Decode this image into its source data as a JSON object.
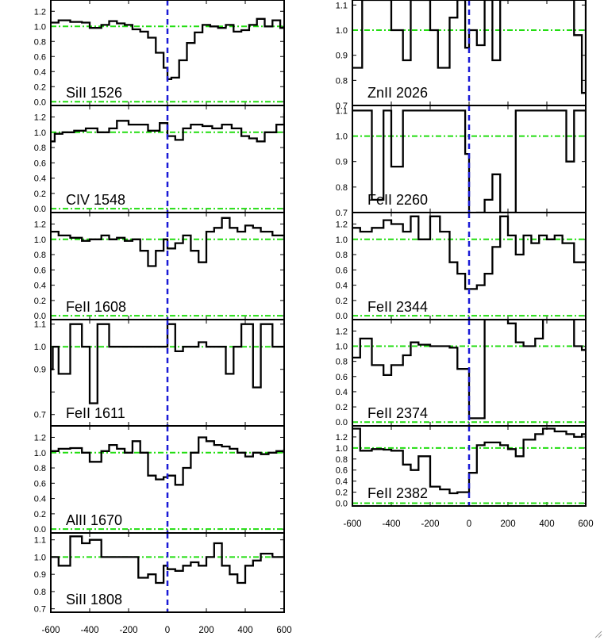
{
  "style": {
    "spectrum_color": "#000000",
    "continuum_color": "#22dd11",
    "center_line_color": "#1a1ad6"
  },
  "chart_data": [
    {
      "type": "line",
      "column": 0,
      "row": 0,
      "label": "SiII 1526",
      "ylim": [
        -0.05,
        1.35
      ],
      "yticks": [
        0.0,
        0.2,
        0.4,
        0.6,
        0.8,
        1.0,
        1.2
      ],
      "ytick_labels": [
        "0.0",
        "0.2",
        "0.4",
        "0.6",
        "0.8",
        "1.0",
        "1.2"
      ],
      "reference_levels": [
        0.0,
        1.0
      ],
      "x": [
        -600,
        -560,
        -500,
        -440,
        -400,
        -340,
        -300,
        -260,
        -220,
        -180,
        -140,
        -100,
        -60,
        -20,
        0,
        20,
        60,
        100,
        140,
        180,
        220,
        260,
        300,
        340,
        380,
        420,
        460,
        500,
        540,
        580,
        600
      ],
      "y": [
        1.05,
        1.08,
        1.06,
        1.05,
        0.98,
        1.02,
        1.07,
        1.04,
        1.02,
        0.96,
        0.93,
        0.85,
        0.65,
        0.45,
        0.3,
        0.32,
        0.55,
        0.78,
        0.92,
        1.02,
        1.0,
        0.98,
        1.02,
        0.93,
        0.95,
        1.02,
        1.1,
        1.0,
        1.08,
        0.98,
        1.0
      ]
    },
    {
      "type": "line",
      "column": 0,
      "row": 1,
      "label": "CIV 1548",
      "ylim": [
        -0.05,
        1.35
      ],
      "yticks": [
        0.0,
        0.2,
        0.4,
        0.6,
        0.8,
        1.0,
        1.2
      ],
      "ytick_labels": [
        "0.0",
        "0.2",
        "0.4",
        "0.6",
        "0.8",
        "1.0",
        "1.2"
      ],
      "reference_levels": [
        0.0,
        1.0
      ],
      "x": [
        -600,
        -580,
        -540,
        -480,
        -420,
        -360,
        -300,
        -260,
        -200,
        -150,
        -100,
        -40,
        0,
        40,
        80,
        120,
        180,
        230,
        280,
        330,
        380,
        420,
        460,
        500,
        560,
        600
      ],
      "y": [
        0.88,
        0.98,
        1.0,
        1.02,
        1.05,
        1.0,
        1.05,
        1.15,
        1.1,
        1.1,
        1.02,
        1.12,
        0.95,
        0.9,
        1.05,
        1.1,
        1.08,
        1.05,
        1.1,
        1.05,
        0.95,
        0.92,
        0.88,
        1.0,
        1.1,
        1.25
      ]
    },
    {
      "type": "line",
      "column": 0,
      "row": 2,
      "label": "FeII 1608",
      "ylim": [
        -0.05,
        1.35
      ],
      "yticks": [
        0.0,
        0.2,
        0.4,
        0.6,
        0.8,
        1.0,
        1.2
      ],
      "ytick_labels": [
        "0.0",
        "0.2",
        "0.4",
        "0.6",
        "0.8",
        "1.0",
        "1.2"
      ],
      "reference_levels": [
        0.0,
        1.0
      ],
      "x": [
        -600,
        -560,
        -500,
        -440,
        -400,
        -340,
        -300,
        -260,
        -220,
        -180,
        -140,
        -100,
        -60,
        -20,
        0,
        40,
        80,
        120,
        160,
        200,
        240,
        280,
        320,
        360,
        400,
        440,
        480,
        540,
        600
      ],
      "y": [
        1.1,
        1.05,
        1.02,
        0.98,
        1.0,
        1.05,
        1.0,
        1.02,
        0.98,
        1.0,
        0.85,
        0.65,
        0.85,
        1.0,
        0.88,
        0.95,
        1.05,
        0.85,
        0.7,
        1.1,
        1.15,
        1.28,
        1.15,
        1.1,
        1.18,
        1.15,
        1.1,
        1.05,
        1.0
      ]
    },
    {
      "type": "line",
      "column": 0,
      "row": 3,
      "label": "FeII 1611",
      "ylim": [
        0.65,
        1.12
      ],
      "yticks": [
        0.7,
        0.8,
        0.9,
        1.0,
        1.1
      ],
      "ytick_labels": [
        "0.7",
        "",
        "0.9",
        "1.0",
        "1.1"
      ],
      "reference_levels": [
        1.0
      ],
      "x": [
        -600,
        -590,
        -560,
        -500,
        -440,
        -400,
        -360,
        -300,
        -260,
        -200,
        -150,
        -100,
        -60,
        -20,
        0,
        40,
        80,
        120,
        160,
        200,
        240,
        300,
        340,
        380,
        440,
        480,
        540,
        600
      ],
      "y": [
        0.9,
        1.0,
        0.88,
        1.1,
        1.0,
        0.75,
        1.1,
        1.0,
        1.0,
        1.0,
        1.0,
        1.0,
        1.0,
        1.0,
        1.1,
        0.98,
        1.0,
        1.0,
        1.02,
        1.0,
        1.0,
        0.88,
        1.0,
        1.1,
        0.82,
        1.1,
        1.0,
        1.0
      ]
    },
    {
      "type": "line",
      "column": 0,
      "row": 4,
      "label": "AlII 1670",
      "ylim": [
        -0.05,
        1.35
      ],
      "yticks": [
        0.0,
        0.2,
        0.4,
        0.6,
        0.8,
        1.0,
        1.2
      ],
      "ytick_labels": [
        "0.0",
        "0.2",
        "0.4",
        "0.6",
        "0.8",
        "1.0",
        "1.2"
      ],
      "reference_levels": [
        0.0,
        1.0
      ],
      "x": [
        -600,
        -560,
        -500,
        -440,
        -400,
        -340,
        -300,
        -260,
        -220,
        -180,
        -140,
        -100,
        -60,
        -20,
        0,
        40,
        80,
        120,
        160,
        200,
        240,
        280,
        320,
        360,
        400,
        440,
        480,
        520,
        560,
        600
      ],
      "y": [
        1.02,
        1.05,
        1.06,
        1.0,
        0.88,
        1.02,
        1.1,
        1.05,
        1.0,
        1.15,
        1.0,
        0.7,
        0.65,
        0.68,
        0.7,
        0.58,
        0.8,
        1.0,
        1.2,
        1.15,
        1.1,
        1.08,
        1.05,
        1.0,
        0.95,
        1.0,
        0.98,
        1.0,
        1.02,
        1.05
      ]
    },
    {
      "type": "line",
      "column": 0,
      "row": 5,
      "label": "SiII 1808",
      "ylim": [
        0.68,
        1.14
      ],
      "yticks": [
        0.7,
        0.8,
        0.9,
        1.0,
        1.1
      ],
      "ytick_labels": [
        "0.7",
        "0.8",
        "0.9",
        "1.0",
        "1.1"
      ],
      "reference_levels": [
        1.0
      ],
      "x": [
        -600,
        -560,
        -500,
        -440,
        -400,
        -340,
        -300,
        -260,
        -200,
        -150,
        -100,
        -60,
        -20,
        0,
        40,
        80,
        120,
        160,
        200,
        240,
        280,
        320,
        360,
        400,
        440,
        480,
        540,
        600
      ],
      "y": [
        1.0,
        0.95,
        1.12,
        1.08,
        1.1,
        1.0,
        1.0,
        1.0,
        1.0,
        0.88,
        0.9,
        0.85,
        0.95,
        0.93,
        0.92,
        0.95,
        0.97,
        0.95,
        1.0,
        1.08,
        0.95,
        0.9,
        0.85,
        0.95,
        0.98,
        1.02,
        1.0,
        1.12
      ]
    },
    {
      "type": "line",
      "column": 1,
      "row": 0,
      "label": "ZnII 2026",
      "ylim": [
        0.7,
        1.12
      ],
      "yticks": [
        0.7,
        0.8,
        0.9,
        1.0,
        1.1
      ],
      "ytick_labels": [
        "0.7",
        "0.8",
        "0.9",
        "1.0",
        "1.1"
      ],
      "reference_levels": [
        1.0
      ],
      "x": [
        -600,
        -550,
        -500,
        -440,
        -400,
        -340,
        -300,
        -260,
        -200,
        -160,
        -100,
        -60,
        -20,
        0,
        40,
        80,
        120,
        160,
        200,
        240,
        280,
        340,
        380,
        440,
        500,
        540,
        580,
        600
      ],
      "y": [
        0.85,
        1.12,
        1.12,
        1.12,
        1.0,
        0.88,
        1.12,
        1.12,
        1.0,
        0.85,
        1.05,
        1.12,
        0.93,
        1.0,
        0.94,
        1.12,
        0.88,
        1.12,
        1.12,
        1.12,
        1.12,
        1.12,
        1.12,
        1.12,
        1.12,
        0.98,
        0.75,
        1.12
      ]
    },
    {
      "type": "line",
      "column": 1,
      "row": 1,
      "label": "FeII 2260",
      "ylim": [
        0.7,
        1.12
      ],
      "yticks": [
        0.7,
        0.8,
        0.9,
        1.0,
        1.1
      ],
      "ytick_labels": [
        "0.7",
        "0.8",
        "0.9",
        "1.0",
        "1.1"
      ],
      "reference_levels": [
        1.0
      ],
      "x": [
        -600,
        -560,
        -500,
        -440,
        -400,
        -340,
        -300,
        -260,
        -200,
        -160,
        -100,
        -60,
        -20,
        0,
        40,
        80,
        120,
        160,
        200,
        240,
        280,
        340,
        380,
        440,
        500,
        540,
        580,
        600
      ],
      "y": [
        1.1,
        1.1,
        0.75,
        1.1,
        0.88,
        1.1,
        1.1,
        1.1,
        1.1,
        1.1,
        1.1,
        1.1,
        0.93,
        0.65,
        0.7,
        0.75,
        0.85,
        0.7,
        0.7,
        1.1,
        1.1,
        1.1,
        1.1,
        1.1,
        0.9,
        1.1,
        1.1,
        0.9
      ]
    },
    {
      "type": "line",
      "column": 1,
      "row": 2,
      "label": "FeII 2344",
      "ylim": [
        -0.05,
        1.35
      ],
      "yticks": [
        0.0,
        0.2,
        0.4,
        0.6,
        0.8,
        1.0,
        1.2
      ],
      "ytick_labels": [
        "0.0",
        "0.2",
        "0.4",
        "0.6",
        "0.8",
        "1.0",
        "1.2"
      ],
      "reference_levels": [
        0.0,
        1.0
      ],
      "x": [
        -600,
        -560,
        -500,
        -440,
        -400,
        -340,
        -300,
        -260,
        -200,
        -150,
        -100,
        -60,
        -20,
        0,
        40,
        80,
        120,
        160,
        200,
        240,
        280,
        320,
        360,
        400,
        440,
        480,
        540,
        600
      ],
      "y": [
        1.15,
        1.1,
        1.15,
        1.25,
        1.2,
        1.1,
        1.3,
        1.0,
        1.3,
        1.1,
        0.7,
        0.55,
        0.35,
        0.35,
        0.4,
        0.55,
        0.9,
        1.3,
        1.05,
        0.8,
        1.05,
        0.95,
        1.05,
        1.0,
        1.05,
        0.95,
        0.7,
        1.0
      ]
    },
    {
      "type": "line",
      "column": 1,
      "row": 3,
      "label": "FeII 2374",
      "ylim": [
        -0.05,
        1.35
      ],
      "yticks": [
        0.0,
        0.2,
        0.4,
        0.6,
        0.8,
        1.0,
        1.2
      ],
      "ytick_labels": [
        "0.0",
        "0.2",
        "0.4",
        "0.6",
        "0.8",
        "1.0",
        "1.2"
      ],
      "reference_levels": [
        0.0,
        1.0
      ],
      "x": [
        -600,
        -560,
        -500,
        -440,
        -400,
        -340,
        -300,
        -260,
        -200,
        -150,
        -100,
        -60,
        -20,
        0,
        40,
        80,
        120,
        160,
        200,
        240,
        280,
        340,
        380,
        440,
        500,
        540,
        580,
        600
      ],
      "y": [
        0.85,
        1.1,
        0.75,
        0.62,
        0.75,
        0.88,
        1.05,
        1.02,
        1.0,
        1.0,
        0.98,
        0.7,
        0.7,
        0.05,
        0.05,
        1.35,
        1.35,
        1.35,
        1.3,
        1.05,
        1.0,
        1.1,
        1.35,
        1.35,
        1.35,
        1.0,
        0.95,
        1.0
      ]
    },
    {
      "type": "line",
      "column": 1,
      "row": 4,
      "label": "FeII 2382",
      "ylim": [
        -0.05,
        1.4
      ],
      "yticks": [
        0.0,
        0.2,
        0.4,
        0.6,
        0.8,
        1.0,
        1.2
      ],
      "ytick_labels": [
        "0.0",
        "0.2",
        "0.4",
        "0.6",
        "0.8",
        "1.0",
        "1.2"
      ],
      "reference_levels": [
        0.0,
        1.0
      ],
      "x": [
        -600,
        -560,
        -500,
        -440,
        -400,
        -340,
        -300,
        -260,
        -200,
        -150,
        -100,
        -60,
        -20,
        0,
        40,
        80,
        120,
        160,
        200,
        240,
        280,
        340,
        380,
        440,
        500,
        540,
        580,
        600
      ],
      "y": [
        1.35,
        0.95,
        0.98,
        0.97,
        0.95,
        0.7,
        0.6,
        0.85,
        0.3,
        0.25,
        0.18,
        0.2,
        0.2,
        0.55,
        1.05,
        1.1,
        1.1,
        1.05,
        0.98,
        0.85,
        1.15,
        1.25,
        1.35,
        1.3,
        1.25,
        1.2,
        1.25,
        1.15
      ]
    }
  ],
  "x_axis": {
    "xlim": [
      -600,
      600
    ],
    "ticks": [
      -600,
      -400,
      -200,
      0,
      200,
      400,
      600
    ],
    "tick_labels": [
      "-600",
      "-400",
      "-200",
      "0",
      "200",
      "400",
      "600"
    ]
  }
}
